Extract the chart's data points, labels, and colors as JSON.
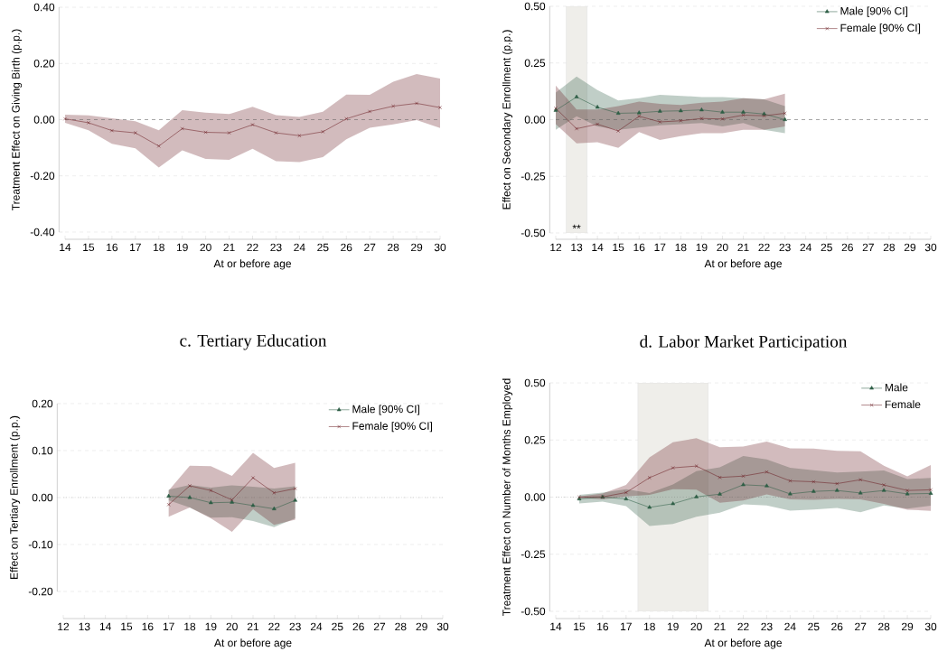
{
  "chart_data": [
    {
      "type": "line",
      "ylabel": "Treatment Effect on Giving Birth (p.p.)",
      "xlabel": "At or before age",
      "x": [
        14,
        15,
        16,
        17,
        18,
        19,
        20,
        21,
        22,
        23,
        24,
        25,
        26,
        27,
        28,
        29,
        30
      ],
      "series": [
        {
          "color": "#6b1f24",
          "marker": "cross",
          "line_style": "solid",
          "values": [
            0.003,
            -0.011,
            -0.039,
            -0.047,
            -0.094,
            -0.032,
            -0.045,
            -0.047,
            -0.018,
            -0.047,
            -0.057,
            -0.043,
            0.003,
            0.029,
            0.048,
            0.058,
            0.043
          ],
          "upper": [
            0.018,
            0.015,
            0.005,
            -0.006,
            -0.038,
            0.034,
            0.025,
            0.02,
            0.046,
            0.016,
            0.01,
            0.028,
            0.089,
            0.088,
            0.135,
            0.162,
            0.146
          ],
          "lower": [
            -0.011,
            -0.038,
            -0.086,
            -0.102,
            -0.17,
            -0.109,
            -0.14,
            -0.143,
            -0.104,
            -0.148,
            -0.151,
            -0.133,
            -0.07,
            -0.029,
            -0.017,
            -0.002,
            -0.03
          ]
        }
      ],
      "xlim": [
        14,
        30
      ],
      "ylim": [
        -0.4,
        0.4
      ],
      "xticks": [
        14,
        15,
        16,
        17,
        18,
        19,
        20,
        21,
        22,
        23,
        24,
        25,
        26,
        27,
        28,
        29,
        30
      ],
      "yticks": [
        {
          "value": -0.4,
          "label": "-0.40"
        },
        {
          "value": -0.2,
          "label": "-0.20"
        },
        {
          "value": 0,
          "label": "0.00"
        },
        {
          "value": 0.2,
          "label": "0.20"
        },
        {
          "value": 0.4,
          "label": "0.40"
        }
      ],
      "grid": "y",
      "ref_lines": [
        {
          "axis": "y",
          "value": 0,
          "line_style": "dashed"
        }
      ]
    },
    {
      "type": "line",
      "ylabel": "Effect on Secondary Enrollment (p.p.)",
      "xlabel": "At or before age",
      "x": [
        12,
        13,
        14,
        15,
        16,
        17,
        18,
        19,
        20,
        21,
        22,
        23
      ],
      "series": [
        {
          "name": "Male [90% CI]",
          "color": "#2e5e45",
          "marker": "triangle",
          "line_style": "solid",
          "values": [
            0.041,
            0.1,
            0.055,
            0.028,
            0.03,
            0.037,
            0.039,
            0.043,
            0.033,
            0.033,
            0.025,
            0.0
          ],
          "upper": [
            0.12,
            0.19,
            0.13,
            0.085,
            0.095,
            0.11,
            0.105,
            0.1,
            0.1,
            0.095,
            0.09,
            0.06
          ],
          "lower": [
            -0.045,
            0.015,
            -0.03,
            -0.045,
            -0.035,
            -0.025,
            -0.02,
            -0.015,
            -0.03,
            -0.015,
            -0.045,
            -0.06
          ]
        },
        {
          "name": "Female [90% CI]",
          "color": "#6b1f24",
          "marker": "cross",
          "line_style": "solid",
          "values": [
            0.05,
            -0.04,
            -0.02,
            -0.05,
            0.015,
            -0.01,
            -0.005,
            0.005,
            0.003,
            0.02,
            0.017,
            0.028
          ],
          "upper": [
            0.15,
            0.045,
            0.045,
            0.06,
            0.08,
            0.07,
            0.065,
            0.075,
            0.08,
            0.095,
            0.09,
            0.115
          ],
          "lower": [
            -0.02,
            -0.105,
            -0.1,
            -0.125,
            -0.055,
            -0.09,
            -0.073,
            -0.06,
            -0.06,
            -0.045,
            -0.045,
            -0.03
          ]
        }
      ],
      "xlim": [
        12,
        30
      ],
      "ylim": [
        -0.5,
        0.5
      ],
      "xticks": [
        12,
        13,
        14,
        15,
        16,
        17,
        18,
        19,
        20,
        21,
        22,
        23,
        24,
        25,
        26,
        27,
        28,
        29,
        30
      ],
      "yticks": [
        {
          "value": -0.5,
          "label": "-0.50"
        },
        {
          "value": -0.25,
          "label": "-0.25"
        },
        {
          "value": 0,
          "label": "0.00"
        },
        {
          "value": 0.25,
          "label": "0.25"
        },
        {
          "value": 0.5,
          "label": "0.50"
        }
      ],
      "grid": "y",
      "legend": "top right",
      "ref_lines": [
        {
          "axis": "y",
          "value": 0,
          "line_style": "dashed"
        }
      ],
      "bands": [
        {
          "axis": "x",
          "from": 12.5,
          "to": 13.5,
          "color": "#efeeea"
        }
      ],
      "annotations": [
        {
          "text": "**",
          "x": 13,
          "y": -0.48
        }
      ]
    },
    {
      "type": "line",
      "title": "c. Tertiary Education",
      "ylabel": "Effect on Tertiary Enrollment (p.p.)",
      "xlabel": "At or before age",
      "x": [
        17,
        18,
        19,
        20,
        21,
        22,
        23
      ],
      "series": [
        {
          "name": "Male [90% CI]",
          "color": "#2e5e45",
          "marker": "triangle",
          "line_style": "solid",
          "values": [
            0.003,
            0.0,
            -0.011,
            -0.01,
            -0.017,
            -0.024,
            -0.006
          ],
          "upper": [
            0.017,
            0.027,
            0.021,
            0.026,
            0.023,
            0.019,
            0.024
          ],
          "lower": [
            -0.006,
            -0.021,
            -0.043,
            -0.042,
            -0.05,
            -0.063,
            -0.044
          ]
        },
        {
          "name": "Female [90% CI]",
          "color": "#6b1f24",
          "marker": "cross",
          "line_style": "solid",
          "values": [
            -0.015,
            0.025,
            0.015,
            -0.005,
            0.042,
            0.01,
            0.019
          ],
          "upper": [
            0.015,
            0.068,
            0.067,
            0.046,
            0.095,
            0.063,
            0.074
          ],
          "lower": [
            -0.041,
            -0.021,
            -0.044,
            -0.073,
            -0.025,
            -0.058,
            -0.047
          ]
        }
      ],
      "xlim": [
        12,
        30
      ],
      "ylim": [
        -0.2,
        0.2
      ],
      "xticks": [
        12,
        13,
        14,
        15,
        16,
        17,
        18,
        19,
        20,
        21,
        22,
        23,
        24,
        25,
        26,
        27,
        28,
        29,
        30
      ],
      "yticks": [
        {
          "value": -0.2,
          "label": "-0.20"
        },
        {
          "value": -0.1,
          "label": "-0.10"
        },
        {
          "value": 0,
          "label": "0.00"
        },
        {
          "value": 0.1,
          "label": "0.10"
        },
        {
          "value": 0.2,
          "label": "0.20"
        }
      ],
      "grid": "y",
      "legend": "top right",
      "ref_lines": [
        {
          "axis": "y",
          "value": 0,
          "line_style": "dotted"
        }
      ]
    },
    {
      "type": "line",
      "title": "d. Labor Market Participation",
      "ylabel": "Treatment Effect on Number of Months Employed",
      "xlabel": "At or before age",
      "x": [
        15,
        16,
        17,
        18,
        19,
        20,
        21,
        22,
        23,
        24,
        25,
        26,
        27,
        28,
        29,
        30
      ],
      "series": [
        {
          "name": "Male",
          "color": "#2e5e45",
          "marker": "triangle",
          "line_style": "solid",
          "values": [
            -0.008,
            0.0,
            -0.008,
            -0.045,
            -0.029,
            0.001,
            0.013,
            0.054,
            0.049,
            0.014,
            0.025,
            0.029,
            0.018,
            0.029,
            0.014,
            0.016
          ],
          "upper": [
            0.01,
            0.02,
            0.035,
            0.018,
            0.055,
            0.114,
            0.13,
            0.18,
            0.165,
            0.128,
            0.118,
            0.108,
            0.112,
            0.117,
            0.079,
            0.084
          ],
          "lower": [
            -0.028,
            -0.02,
            -0.04,
            -0.126,
            -0.118,
            -0.086,
            -0.068,
            -0.032,
            -0.037,
            -0.059,
            -0.054,
            -0.047,
            -0.066,
            -0.037,
            -0.05,
            -0.038
          ]
        },
        {
          "name": "Female",
          "color": "#6b1f24",
          "marker": "cross",
          "line_style": "solid",
          "values": [
            0.0,
            0.001,
            0.02,
            0.085,
            0.128,
            0.136,
            0.086,
            0.092,
            0.11,
            0.071,
            0.067,
            0.059,
            0.076,
            0.053,
            0.029,
            0.032
          ],
          "upper": [
            0.003,
            0.016,
            0.053,
            0.174,
            0.24,
            0.258,
            0.218,
            0.221,
            0.243,
            0.213,
            0.212,
            0.203,
            0.201,
            0.137,
            0.091,
            0.14
          ],
          "lower": [
            -0.004,
            -0.01,
            0.003,
            0.01,
            0.035,
            0.033,
            -0.025,
            -0.015,
            0.012,
            -0.01,
            -0.012,
            -0.008,
            -0.01,
            -0.03,
            -0.055,
            -0.06
          ]
        }
      ],
      "xlim": [
        14,
        30
      ],
      "ylim": [
        -0.5,
        0.5
      ],
      "xticks": [
        14,
        15,
        16,
        17,
        18,
        19,
        20,
        21,
        22,
        23,
        24,
        25,
        26,
        27,
        28,
        29,
        30
      ],
      "yticks": [
        {
          "value": -0.5,
          "label": "-0.50"
        },
        {
          "value": -0.25,
          "label": "-0.25"
        },
        {
          "value": 0,
          "label": "0.00"
        },
        {
          "value": 0.25,
          "label": "0.25"
        },
        {
          "value": 0.5,
          "label": "0.50"
        }
      ],
      "grid": "y",
      "legend": "top right",
      "ref_lines": [
        {
          "axis": "y",
          "value": 0,
          "line_style": "dotted"
        }
      ],
      "bands": [
        {
          "axis": "x",
          "from": 17.5,
          "to": 20.5,
          "color": "#efeeea"
        }
      ]
    }
  ]
}
